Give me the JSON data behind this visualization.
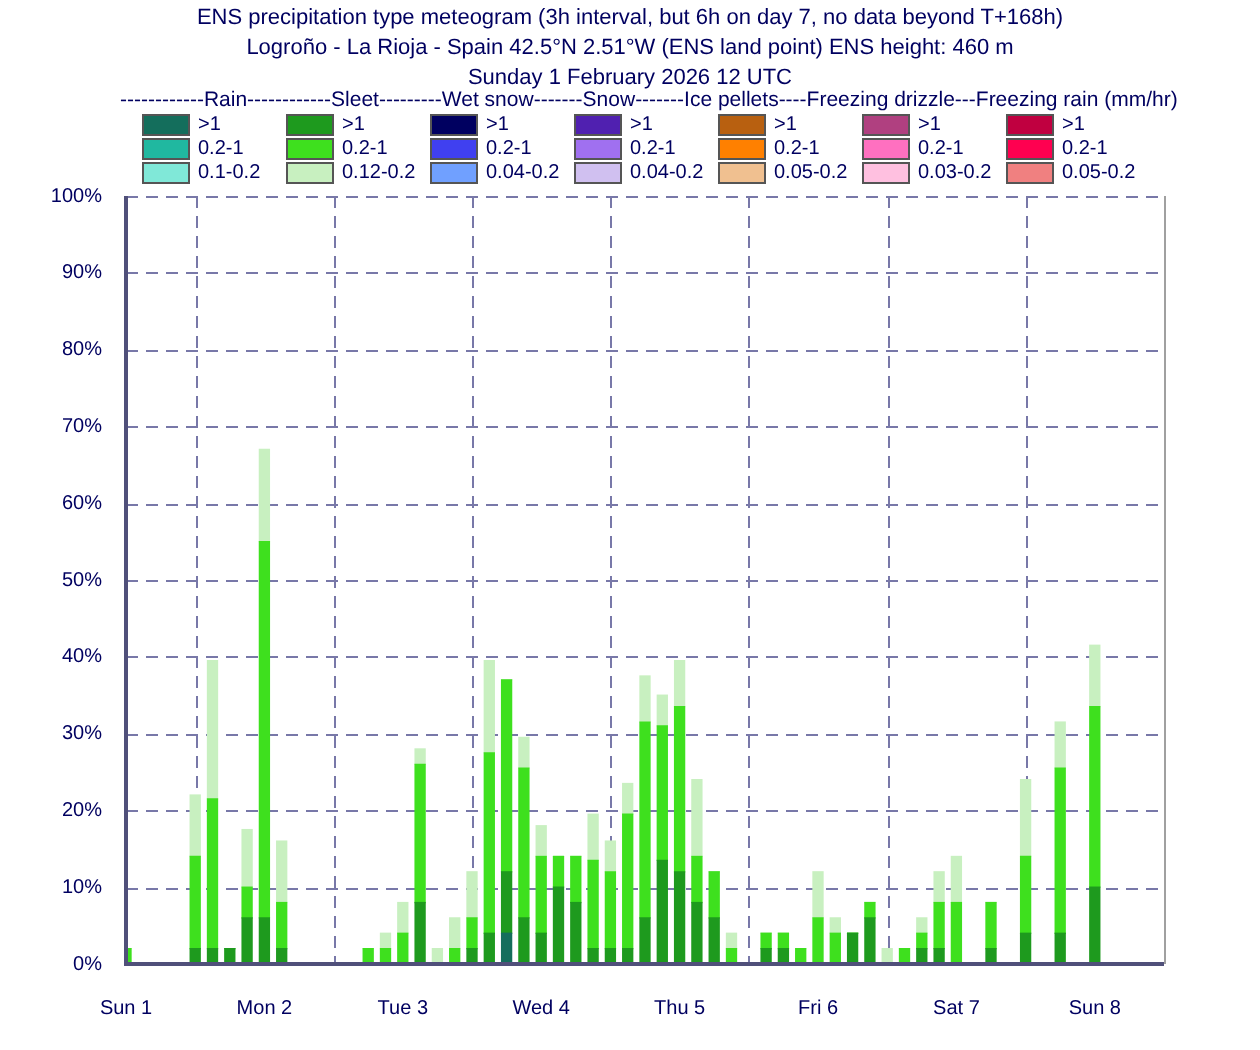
{
  "chart_data": {
    "type": "bar",
    "title": "ENS precipitation type meteogram (3h interval, but 6h on day 7, no data beyond T+168h)",
    "subtitle": "Logroño - La Rioja - Spain 42.5°N 2.51°W (ENS land point) ENS height: 460 m\nSunday  1 February 2026 12 UTC",
    "legend_title": "------------Rain------------Sleet---------Wet snow-------Snow-------Ice pellets----Freezing drizzle---Freezing rain (mm/hr)",
    "stacked": true,
    "legend": "top",
    "grid": true,
    "categories": [
      "Sun 1",
      null,
      null,
      null,
      null,
      null,
      null,
      null,
      "Mon 2",
      null,
      null,
      null,
      null,
      null,
      null,
      null,
      "Tue 3",
      null,
      null,
      null,
      null,
      null,
      null,
      null,
      "Wed 4",
      null,
      null,
      null,
      null,
      null,
      null,
      null,
      "Thu 5",
      null,
      null,
      null,
      null,
      null,
      null,
      null,
      "Fri 6",
      null,
      null,
      null,
      null,
      null,
      null,
      null,
      "Sat 7",
      null,
      null,
      null,
      null,
      null,
      null,
      null,
      "Sun 8",
      null,
      null,
      null,
      null
    ],
    "ylim": [
      0,
      100
    ],
    "yticks": [
      {
        "value": 0,
        "label": "0%"
      },
      {
        "value": 10,
        "label": "10%"
      },
      {
        "value": 20,
        "label": "20%"
      },
      {
        "value": 30,
        "label": "30%"
      },
      {
        "value": 40,
        "label": "40%"
      },
      {
        "value": 50,
        "label": "50%"
      },
      {
        "value": 60,
        "label": "60%"
      },
      {
        "value": 70,
        "label": "70%"
      },
      {
        "value": 80,
        "label": "80%"
      },
      {
        "value": 90,
        "label": "90%"
      },
      {
        "value": 100,
        "label": "100%"
      }
    ],
    "series": [
      {
        "name": ">1",
        "color": "#146e5c",
        "values": [
          null,
          null,
          null,
          null,
          null,
          null,
          null,
          null,
          null,
          null,
          null,
          null,
          null,
          null,
          null,
          null,
          null,
          null,
          null,
          null,
          null,
          null,
          4,
          null,
          null,
          null,
          null,
          null,
          null,
          null,
          null,
          null,
          null,
          null,
          null,
          null,
          null,
          null,
          null,
          null,
          null,
          null,
          null,
          null,
          null,
          null,
          null,
          null,
          null,
          null,
          null,
          null,
          null,
          null,
          null,
          null,
          null,
          null,
          null,
          null,
          null
        ]
      },
      {
        "name": "0.2-1",
        "color": "#20b8a0",
        "values": [
          null,
          null,
          null,
          null,
          null,
          null,
          null,
          null,
          null,
          null,
          null,
          null,
          null,
          null,
          null,
          null,
          null,
          null,
          null,
          null,
          null,
          null,
          null,
          null,
          null,
          null,
          null,
          null,
          null,
          null,
          null,
          null,
          null,
          null,
          null,
          null,
          null,
          null,
          null,
          null,
          null,
          null,
          null,
          null,
          null,
          null,
          null,
          null,
          null,
          null,
          null,
          null,
          null,
          null,
          null,
          null,
          null,
          null,
          null,
          null,
          null
        ]
      },
      {
        "name": "0.1-0.2",
        "color": "#80e8d8",
        "values": [
          null,
          null,
          null,
          null,
          null,
          null,
          null,
          null,
          null,
          null,
          null,
          null,
          null,
          null,
          null,
          null,
          null,
          null,
          null,
          null,
          null,
          null,
          null,
          null,
          null,
          null,
          null,
          null,
          null,
          null,
          null,
          null,
          null,
          null,
          null,
          null,
          null,
          null,
          null,
          null,
          null,
          null,
          null,
          null,
          null,
          null,
          null,
          null,
          null,
          null,
          null,
          null,
          null,
          null,
          null,
          null,
          null,
          null,
          null,
          null,
          null
        ]
      },
      {
        "name": ">1",
        "color": "#1e9a1e",
        "values": [
          0,
          0,
          0,
          0,
          2,
          2,
          2,
          6,
          6,
          2,
          0,
          0,
          0,
          0,
          0,
          0,
          0,
          8,
          0,
          0,
          2,
          4,
          8,
          6,
          4,
          10,
          8,
          2,
          2,
          2,
          6,
          13.5,
          12,
          8,
          6,
          0,
          0,
          2,
          2,
          0,
          0,
          0,
          4,
          6,
          0,
          0,
          2,
          2,
          0,
          null,
          2,
          null,
          4,
          null,
          4,
          null,
          10,
          null,
          null,
          null,
          null
        ]
      },
      {
        "name": "0.2-1",
        "color": "#3ee01e",
        "values": [
          2,
          0,
          0,
          0,
          12,
          19.5,
          0,
          4,
          49,
          6,
          0,
          0,
          0,
          0,
          2,
          2,
          4,
          18,
          0,
          2,
          4,
          23.5,
          25,
          19.5,
          10,
          4,
          6,
          11.5,
          10,
          17.5,
          25.5,
          17.5,
          21.5,
          6,
          6,
          2,
          0,
          2,
          2,
          2,
          6,
          4,
          0,
          2,
          0,
          2,
          2,
          6,
          8,
          null,
          6,
          null,
          10,
          null,
          21.5,
          null,
          23.5,
          null,
          null,
          null,
          null
        ]
      },
      {
        "name": "0.12-0.2",
        "color": "#c8f0c0",
        "values": [
          0,
          0,
          0,
          0,
          8,
          18,
          0,
          7.5,
          12,
          8,
          0,
          0,
          0,
          0,
          0,
          2,
          4,
          2,
          2,
          4,
          6,
          12,
          0,
          4,
          4,
          0,
          0,
          6,
          4,
          4,
          6,
          4,
          6,
          10,
          0,
          2,
          0,
          0,
          0,
          0,
          6,
          2,
          0,
          0,
          2,
          0,
          2,
          4,
          6,
          null,
          0,
          null,
          10,
          null,
          6,
          null,
          8,
          null,
          null,
          null,
          null
        ]
      },
      {
        "name": ">1",
        "color": "#000060",
        "values": [
          null,
          null,
          null,
          null,
          null,
          null,
          null,
          null,
          null,
          null,
          null,
          null,
          null,
          null,
          null,
          null,
          null,
          null,
          null,
          null,
          null,
          null,
          null,
          null,
          null,
          null,
          null,
          null,
          null,
          null,
          null,
          null,
          null,
          null,
          null,
          null,
          null,
          null,
          null,
          null,
          null,
          null,
          null,
          null,
          null,
          null,
          null,
          null,
          null,
          null,
          null,
          null,
          null,
          null,
          null,
          null,
          null,
          null,
          null,
          null,
          null
        ]
      },
      {
        "name": "0.2-1",
        "color": "#4040f0",
        "values": [
          null,
          null,
          null,
          null,
          null,
          null,
          null,
          null,
          null,
          null,
          null,
          null,
          null,
          null,
          null,
          null,
          null,
          null,
          null,
          null,
          null,
          null,
          null,
          null,
          null,
          null,
          null,
          null,
          null,
          null,
          null,
          null,
          null,
          null,
          null,
          null,
          null,
          null,
          null,
          null,
          null,
          null,
          null,
          null,
          null,
          null,
          null,
          null,
          null,
          null,
          null,
          null,
          null,
          null,
          null,
          null,
          null,
          null,
          null,
          null,
          null
        ]
      },
      {
        "name": "0.04-0.2",
        "color": "#70a0ff",
        "values": [
          null,
          null,
          null,
          null,
          null,
          null,
          null,
          null,
          null,
          null,
          null,
          null,
          null,
          null,
          null,
          null,
          null,
          null,
          null,
          null,
          null,
          null,
          null,
          null,
          null,
          null,
          null,
          null,
          null,
          null,
          null,
          null,
          null,
          null,
          null,
          null,
          null,
          null,
          null,
          null,
          null,
          null,
          null,
          null,
          null,
          null,
          null,
          null,
          null,
          null,
          null,
          null,
          null,
          null,
          null,
          null,
          null,
          null,
          null,
          null,
          null
        ]
      },
      {
        "name": ">1",
        "color": "#5020b0",
        "values": [
          null,
          null,
          null,
          null,
          null,
          null,
          null,
          null,
          null,
          null,
          null,
          null,
          null,
          null,
          null,
          null,
          null,
          null,
          null,
          null,
          null,
          null,
          null,
          null,
          null,
          null,
          null,
          null,
          null,
          null,
          null,
          null,
          null,
          null,
          null,
          null,
          null,
          null,
          null,
          null,
          null,
          null,
          null,
          null,
          null,
          null,
          null,
          null,
          null,
          null,
          null,
          null,
          null,
          null,
          null,
          null,
          null,
          null,
          null,
          null,
          null
        ]
      },
      {
        "name": "0.2-1",
        "color": "#a070f0",
        "values": [
          null,
          null,
          null,
          null,
          null,
          null,
          null,
          null,
          null,
          null,
          null,
          null,
          null,
          null,
          null,
          null,
          null,
          null,
          null,
          null,
          null,
          null,
          null,
          null,
          null,
          null,
          null,
          null,
          null,
          null,
          null,
          null,
          null,
          null,
          null,
          null,
          null,
          null,
          null,
          null,
          null,
          null,
          null,
          null,
          null,
          null,
          null,
          null,
          null,
          null,
          null,
          null,
          null,
          null,
          null,
          null,
          null,
          null,
          null,
          null,
          null
        ]
      },
      {
        "name": "0.04-0.2",
        "color": "#d0c0f0",
        "values": [
          null,
          null,
          null,
          null,
          null,
          null,
          null,
          null,
          null,
          null,
          null,
          null,
          null,
          null,
          null,
          null,
          null,
          null,
          null,
          null,
          null,
          null,
          null,
          null,
          null,
          null,
          null,
          null,
          null,
          null,
          null,
          null,
          null,
          null,
          null,
          null,
          null,
          null,
          null,
          null,
          null,
          null,
          null,
          null,
          null,
          null,
          null,
          null,
          null,
          null,
          null,
          null,
          null,
          null,
          null,
          null,
          null,
          null,
          null,
          null,
          null
        ]
      },
      {
        "name": ">1",
        "color": "#b86010",
        "values": [
          null,
          null,
          null,
          null,
          null,
          null,
          null,
          null,
          null,
          null,
          null,
          null,
          null,
          null,
          null,
          null,
          null,
          null,
          null,
          null,
          null,
          null,
          null,
          null,
          null,
          null,
          null,
          null,
          null,
          null,
          null,
          null,
          null,
          null,
          null,
          null,
          null,
          null,
          null,
          null,
          null,
          null,
          null,
          null,
          null,
          null,
          null,
          null,
          null,
          null,
          null,
          null,
          null,
          null,
          null,
          null,
          null,
          null,
          null,
          null,
          null
        ]
      },
      {
        "name": "0.2-1",
        "color": "#ff8000",
        "values": [
          null,
          null,
          null,
          null,
          null,
          null,
          null,
          null,
          null,
          null,
          null,
          null,
          null,
          null,
          null,
          null,
          null,
          null,
          null,
          null,
          null,
          null,
          null,
          null,
          null,
          null,
          null,
          null,
          null,
          null,
          null,
          null,
          null,
          null,
          null,
          null,
          null,
          null,
          null,
          null,
          null,
          null,
          null,
          null,
          null,
          null,
          null,
          null,
          null,
          null,
          null,
          null,
          null,
          null,
          null,
          null,
          null,
          null,
          null,
          null,
          null
        ]
      },
      {
        "name": "0.05-0.2",
        "color": "#f0c090",
        "values": [
          null,
          null,
          null,
          null,
          null,
          null,
          null,
          null,
          null,
          null,
          null,
          null,
          null,
          null,
          null,
          null,
          null,
          null,
          null,
          null,
          null,
          null,
          null,
          null,
          null,
          null,
          null,
          null,
          null,
          null,
          null,
          null,
          null,
          null,
          null,
          null,
          null,
          null,
          null,
          null,
          null,
          null,
          null,
          null,
          null,
          null,
          null,
          null,
          null,
          null,
          null,
          null,
          null,
          null,
          null,
          null,
          null,
          null,
          null,
          null,
          null
        ]
      },
      {
        "name": ">1",
        "color": "#b04080",
        "values": [
          null,
          null,
          null,
          null,
          null,
          null,
          null,
          null,
          null,
          null,
          null,
          null,
          null,
          null,
          null,
          null,
          null,
          null,
          null,
          null,
          null,
          null,
          null,
          null,
          null,
          null,
          null,
          null,
          null,
          null,
          null,
          null,
          null,
          null,
          null,
          null,
          null,
          null,
          null,
          null,
          null,
          null,
          null,
          null,
          null,
          null,
          null,
          null,
          null,
          null,
          null,
          null,
          null,
          null,
          null,
          null,
          null,
          null,
          null,
          null,
          null
        ]
      },
      {
        "name": "0.2-1",
        "color": "#ff70c0",
        "values": [
          null,
          null,
          null,
          null,
          null,
          null,
          null,
          null,
          null,
          null,
          null,
          null,
          null,
          null,
          null,
          null,
          null,
          null,
          null,
          null,
          null,
          null,
          null,
          null,
          null,
          null,
          null,
          null,
          null,
          null,
          null,
          null,
          null,
          null,
          null,
          null,
          null,
          null,
          null,
          null,
          null,
          null,
          null,
          null,
          null,
          null,
          null,
          null,
          null,
          null,
          null,
          null,
          null,
          null,
          null,
          null,
          null,
          null,
          null,
          null,
          null
        ]
      },
      {
        "name": "0.03-0.2",
        "color": "#ffc0e0",
        "values": [
          null,
          null,
          null,
          null,
          null,
          null,
          null,
          null,
          null,
          null,
          null,
          null,
          null,
          null,
          null,
          null,
          null,
          null,
          null,
          null,
          null,
          null,
          null,
          null,
          null,
          null,
          null,
          null,
          null,
          null,
          null,
          null,
          null,
          null,
          null,
          null,
          null,
          null,
          null,
          null,
          null,
          null,
          null,
          null,
          null,
          null,
          null,
          null,
          null,
          null,
          null,
          null,
          null,
          null,
          null,
          null,
          null,
          null,
          null,
          null,
          null
        ]
      },
      {
        "name": ">1",
        "color": "#c00040",
        "values": [
          null,
          null,
          null,
          null,
          null,
          null,
          null,
          null,
          null,
          null,
          null,
          null,
          null,
          null,
          null,
          null,
          null,
          null,
          null,
          null,
          null,
          null,
          null,
          null,
          null,
          null,
          null,
          null,
          null,
          null,
          null,
          null,
          null,
          null,
          null,
          null,
          null,
          null,
          null,
          null,
          null,
          null,
          null,
          null,
          null,
          null,
          null,
          null,
          null,
          null,
          null,
          null,
          null,
          null,
          null,
          null,
          null,
          null,
          null,
          null,
          null
        ]
      },
      {
        "name": "0.2-1",
        "color": "#ff0050",
        "values": [
          null,
          null,
          null,
          null,
          null,
          null,
          null,
          null,
          null,
          null,
          null,
          null,
          null,
          null,
          null,
          null,
          null,
          null,
          null,
          null,
          null,
          null,
          null,
          null,
          null,
          null,
          null,
          null,
          null,
          null,
          null,
          null,
          null,
          null,
          null,
          null,
          null,
          null,
          null,
          null,
          null,
          null,
          null,
          null,
          null,
          null,
          null,
          null,
          null,
          null,
          null,
          null,
          null,
          null,
          null,
          null,
          null,
          null,
          null,
          null,
          null
        ]
      },
      {
        "name": "0.05-0.2",
        "color": "#f08080",
        "values": [
          null,
          null,
          null,
          null,
          null,
          null,
          null,
          null,
          null,
          null,
          null,
          null,
          null,
          null,
          null,
          null,
          null,
          null,
          null,
          null,
          null,
          null,
          null,
          null,
          null,
          null,
          null,
          null,
          null,
          null,
          null,
          null,
          null,
          null,
          null,
          null,
          null,
          null,
          null,
          null,
          null,
          null,
          null,
          null,
          null,
          null,
          null,
          null,
          null,
          null,
          null,
          null,
          null,
          null,
          null,
          null,
          null,
          null,
          null,
          null,
          null
        ]
      }
    ]
  }
}
